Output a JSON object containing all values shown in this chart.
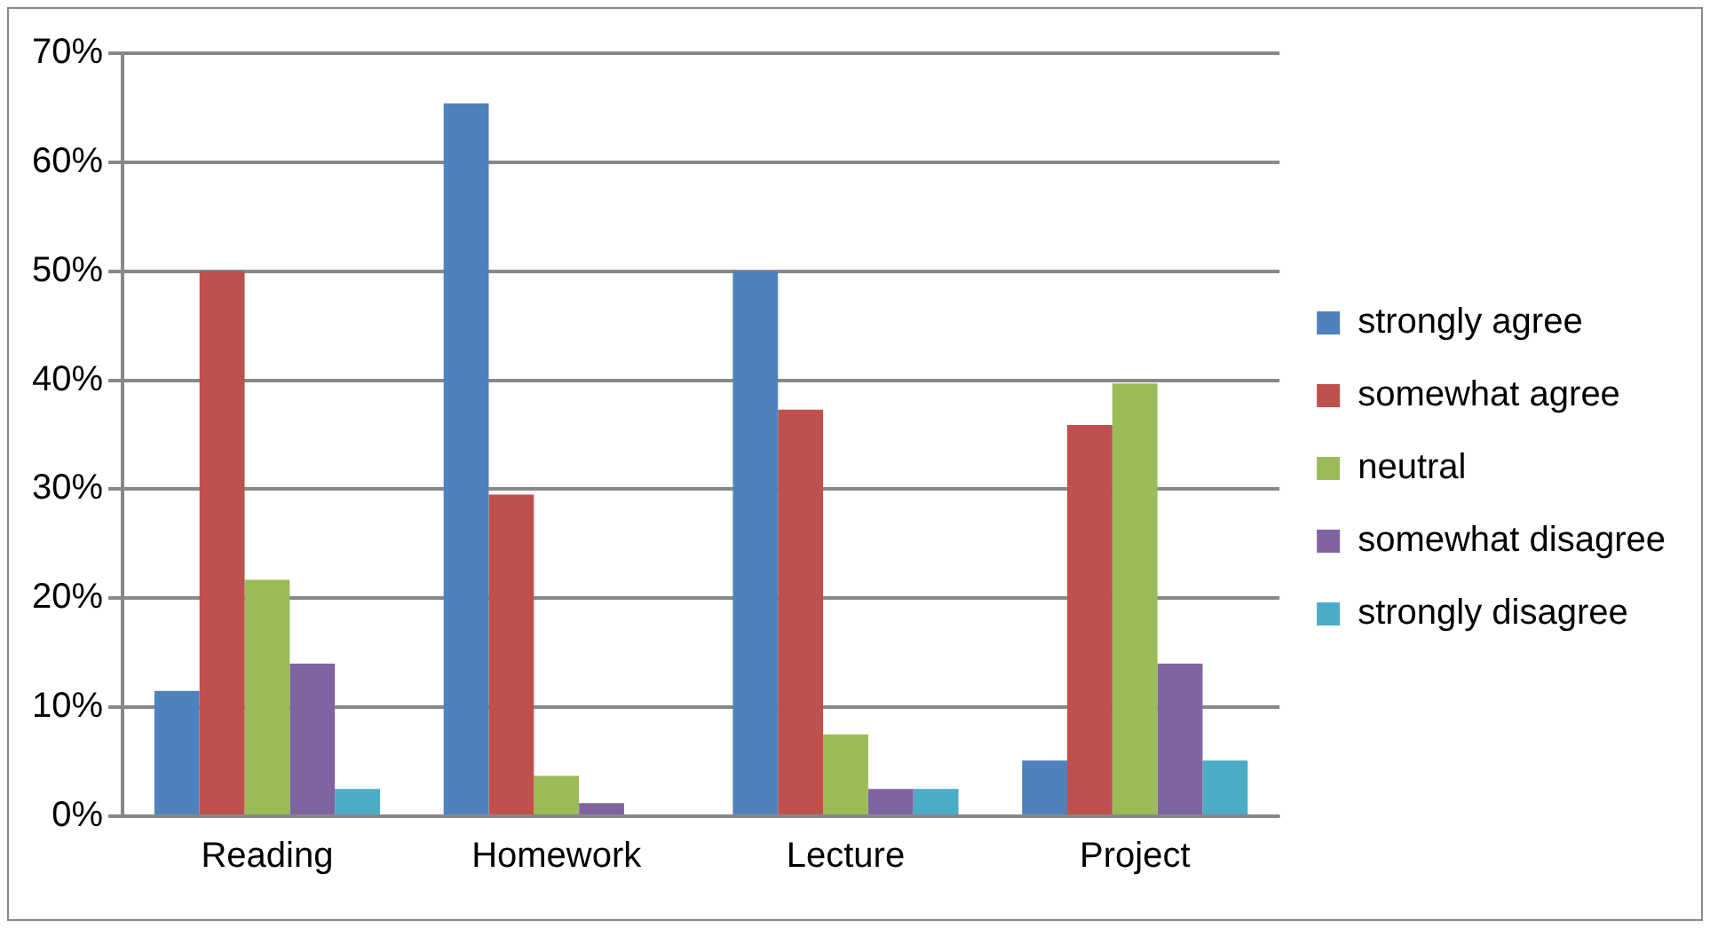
{
  "chart_data": {
    "type": "bar",
    "categories": [
      "Reading",
      "Homework",
      "Lecture",
      "Project"
    ],
    "series": [
      {
        "name": "strongly agree",
        "color": "#4f81bd",
        "values": [
          11.5,
          65.4,
          50,
          5.1
        ]
      },
      {
        "name": "somewhat agree",
        "color": "#c0504d",
        "values": [
          50,
          29.5,
          37.3,
          35.9
        ]
      },
      {
        "name": "neutral",
        "color": "#9bbb59",
        "values": [
          21.7,
          3.7,
          7.5,
          39.7
        ]
      },
      {
        "name": "somewhat disagree",
        "color": "#8064a2",
        "values": [
          14,
          1.2,
          2.5,
          14
        ]
      },
      {
        "name": "strongly disagree",
        "color": "#4bacc6",
        "values": [
          2.5,
          0,
          2.5,
          5.1
        ]
      }
    ],
    "ylim": [
      0,
      70
    ],
    "yticks": [
      {
        "value": 0,
        "label": "0%"
      },
      {
        "value": 10,
        "label": "10%"
      },
      {
        "value": 20,
        "label": "20%"
      },
      {
        "value": 30,
        "label": "30%"
      },
      {
        "value": 40,
        "label": "40%"
      },
      {
        "value": 50,
        "label": "50%"
      },
      {
        "value": 60,
        "label": "60%"
      },
      {
        "value": 70,
        "label": "70%"
      }
    ],
    "grid": "y",
    "legend": "right"
  }
}
